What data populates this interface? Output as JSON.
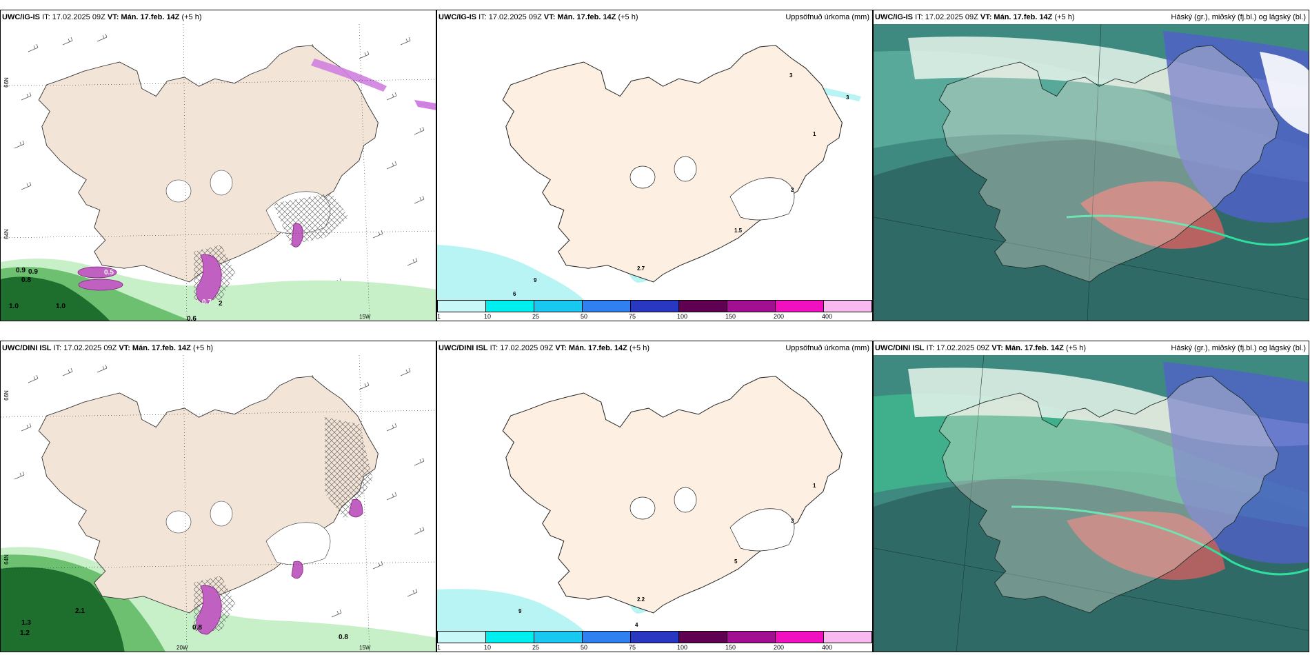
{
  "colorbar": {
    "ticks": [
      "1",
      "10",
      "25",
      "50",
      "75",
      "100",
      "150",
      "200",
      "400"
    ],
    "colors": [
      "#c8f8f8",
      "#00eeee",
      "#18c8f0",
      "#3080f0",
      "#2838c0",
      "#600050",
      "#a01090",
      "#f010c0",
      "#f8b8f0"
    ]
  },
  "rows": [
    {
      "model": "UWC/IG-IS",
      "it": "IT: 17.02.2025 09Z",
      "vt_label": "VT:",
      "vt_value": "Mán. 17.feb. 14Z",
      "lead": "(+5 h)",
      "precip_title": "Uppsöfnuð úrkoma (mm)",
      "cloud_title": "Háský (gr.), miðský (fj.bl.) og lágský (bl.)",
      "lat_labels": [
        "66N",
        "64N"
      ],
      "lon_labels": [
        "15W"
      ],
      "left_values": [
        "0.9",
        "0.9",
        "0.8",
        "0.5",
        "0.7",
        "1.0",
        "1.0",
        "0.6",
        "2"
      ],
      "mid_values": [
        "3",
        "3",
        "1",
        "2",
        "1.5",
        "2.7",
        "9",
        "6"
      ]
    },
    {
      "model": "UWC/DINI ISL",
      "it": "IT: 17.02.2025 09Z",
      "vt_label": "VT:",
      "vt_value": "Mán. 17.feb. 14Z",
      "lead": "(+5 h)",
      "precip_title": "Uppsöfnuð úrkoma (mm)",
      "cloud_title": "Háský (gr.), miðský (fj.bl.) og lágský (bl.)",
      "lat_labels": [
        "66N",
        "64N"
      ],
      "lon_labels": [
        "20W",
        "15W"
      ],
      "left_values": [
        "2.1",
        "1.3",
        "1.2",
        "0.8",
        "0.8"
      ],
      "mid_values": [
        "1",
        "3",
        "5",
        "2.2",
        "9",
        "4"
      ]
    }
  ]
}
